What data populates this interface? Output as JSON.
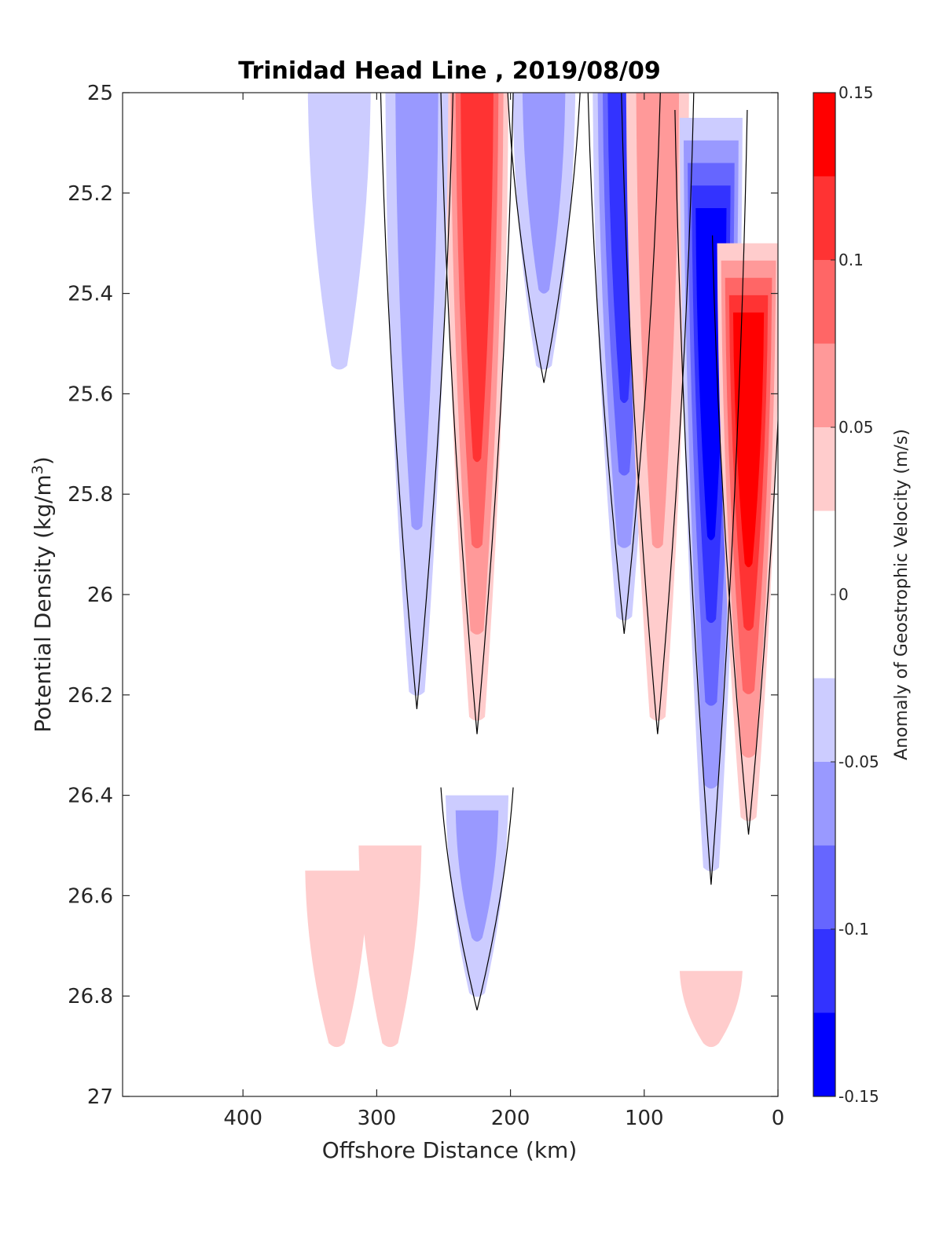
{
  "chart_data": {
    "type": "contour",
    "title": "Trinidad Head Line , 2019/08/09",
    "xlabel": "Offshore Distance (km)",
    "ylabel_main": "Potential Density (kg/m",
    "ylabel_sup": "3",
    "ylabel_close": ")",
    "xlim": [
      490,
      0
    ],
    "ylim": [
      25,
      27
    ],
    "y_reversed": true,
    "xticks": [
      400,
      300,
      200,
      100,
      0
    ],
    "xtick_labels": [
      "400",
      "300",
      "200",
      "100",
      "0"
    ],
    "yticks": [
      25,
      25.2,
      25.4,
      25.6,
      25.8,
      26,
      26.2,
      26.4,
      26.6,
      26.8,
      27
    ],
    "ytick_labels": [
      "25",
      "25.2",
      "25.4",
      "25.6",
      "25.8",
      "26",
      "26.2",
      "26.4",
      "26.6",
      "26.8",
      "27"
    ],
    "zero_contour": "black",
    "colorbar": {
      "label": "Anomaly of Geostrophic Velocity (m/s)",
      "clim": [
        -0.15,
        0.15
      ],
      "ticks": [
        0.15,
        0.1,
        0.05,
        0,
        -0.05,
        -0.1,
        -0.15
      ],
      "tick_labels": [
        "0.15",
        "0.1",
        "0.05",
        "0",
        "-0.05",
        "-0.1",
        "-0.15"
      ],
      "levels": [
        -0.15,
        -0.125,
        -0.1,
        -0.075,
        -0.05,
        -0.025,
        0.025,
        0.05,
        0.075,
        0.1,
        0.125,
        0.15
      ],
      "colors": [
        "#0000ff",
        "#3333ff",
        "#6666ff",
        "#9999ff",
        "#ccccff",
        "#ffffff",
        "#ffcccc",
        "#ff9999",
        "#ff6666",
        "#ff3333",
        "#ff0000"
      ]
    },
    "features": [
      {
        "x": 225,
        "sigma": [
          25.0,
          26.25
        ],
        "peak": 0.12,
        "sign": "positive"
      },
      {
        "x": 270,
        "sigma": [
          25.0,
          26.2
        ],
        "peak": -0.07,
        "sign": "negative"
      },
      {
        "x": 115,
        "sigma": [
          25.0,
          26.05
        ],
        "peak": -0.12,
        "sign": "negative"
      },
      {
        "x": 90,
        "sigma": [
          25.0,
          26.25
        ],
        "peak": 0.06,
        "sign": "positive"
      },
      {
        "x": 50,
        "sigma": [
          25.05,
          26.55
        ],
        "peak": -0.13,
        "sign": "negative"
      },
      {
        "x": 22,
        "sigma": [
          25.3,
          26.45
        ],
        "peak": 0.14,
        "sign": "positive"
      },
      {
        "x": 328,
        "sigma": [
          25.0,
          25.55
        ],
        "peak": -0.04,
        "sign": "negative"
      },
      {
        "x": 175,
        "sigma": [
          25.0,
          25.55
        ],
        "peak": -0.05,
        "sign": "negative"
      },
      {
        "x": 225,
        "sigma": [
          26.4,
          26.8
        ],
        "peak": -0.06,
        "sign": "negative"
      },
      {
        "x": 290,
        "sigma": [
          26.5,
          26.9
        ],
        "peak": 0.04,
        "sign": "positive"
      },
      {
        "x": 330,
        "sigma": [
          26.55,
          26.9
        ],
        "peak": 0.04,
        "sign": "positive"
      },
      {
        "x": 50,
        "sigma": [
          26.75,
          26.9
        ],
        "peak": 0.04,
        "sign": "positive"
      }
    ]
  }
}
